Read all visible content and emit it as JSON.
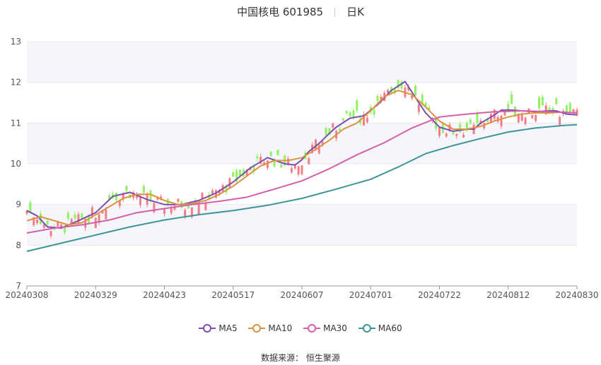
{
  "header": {
    "stock_name": "中国核电 601985",
    "period": "日K"
  },
  "source": {
    "label": "数据来源：",
    "name": "恒生聚源"
  },
  "colors": {
    "up": "#f47d85",
    "down": "#8ff25f",
    "MA5": "#7a4fb1",
    "MA10": "#e0913f",
    "MA30": "#d55fa8",
    "MA60": "#3f9496",
    "band": "#f4f6fb",
    "grid": "#e8e8e8"
  },
  "chart_data": {
    "type": "candlestick",
    "ylim": [
      7,
      13
    ],
    "yticks": [
      7,
      8,
      9,
      10,
      11,
      12,
      13
    ],
    "xticks": [
      "20240308",
      "20240329",
      "20240423",
      "20240517",
      "20240607",
      "20240701",
      "20240722",
      "20240812",
      "20240830"
    ],
    "legend_position": "bottom",
    "series": [
      {
        "name": "MA5",
        "x": [
          0,
          3,
          6,
          10,
          15,
          20,
          25,
          30,
          35,
          40,
          45,
          50,
          55,
          60,
          65,
          70,
          75,
          78,
          80,
          82,
          85,
          88,
          90,
          94,
          98,
          102,
          106,
          110,
          114,
          116,
          120,
          124,
          128,
          130,
          132,
          136,
          138,
          141,
          144,
          148,
          152,
          154,
          157,
          160
        ],
        "values": [
          8.85,
          8.72,
          8.45,
          8.42,
          8.6,
          8.8,
          9.2,
          9.3,
          9.12,
          9.0,
          9.0,
          9.1,
          9.28,
          9.55,
          9.9,
          10.15,
          10.0,
          9.97,
          10.1,
          10.3,
          10.5,
          10.75,
          10.9,
          11.12,
          11.18,
          11.45,
          11.8,
          12.02,
          11.5,
          11.25,
          10.9,
          10.8,
          10.85,
          10.85,
          11.0,
          11.2,
          11.32,
          11.32,
          11.3,
          11.28,
          11.3,
          11.3,
          11.22,
          11.2
        ]
      },
      {
        "name": "MA10",
        "x": [
          0,
          4,
          8,
          12,
          16,
          20,
          24,
          28,
          32,
          36,
          40,
          44,
          48,
          52,
          56,
          60,
          64,
          68,
          72,
          76,
          80,
          84,
          88,
          92,
          96,
          100,
          104,
          108,
          112,
          116,
          120,
          124,
          128,
          132,
          136,
          140,
          144,
          148,
          152,
          156,
          160
        ],
        "values": [
          8.6,
          8.7,
          8.6,
          8.5,
          8.55,
          8.75,
          8.95,
          9.15,
          9.25,
          9.25,
          9.1,
          9.0,
          9.02,
          9.1,
          9.25,
          9.45,
          9.7,
          9.95,
          10.08,
          10.08,
          10.15,
          10.35,
          10.58,
          10.85,
          11.0,
          11.3,
          11.65,
          11.8,
          11.7,
          11.4,
          11.05,
          10.85,
          10.85,
          10.92,
          11.05,
          11.15,
          11.22,
          11.25,
          11.25,
          11.27,
          11.25
        ]
      },
      {
        "name": "MA30",
        "x": [
          0,
          8,
          16,
          24,
          32,
          40,
          48,
          56,
          64,
          72,
          80,
          88,
          96,
          104,
          112,
          120,
          128,
          136,
          144,
          152,
          160
        ],
        "values": [
          8.3,
          8.42,
          8.5,
          8.62,
          8.8,
          8.9,
          9.0,
          9.08,
          9.18,
          9.38,
          9.58,
          9.88,
          10.22,
          10.52,
          10.88,
          11.15,
          11.22,
          11.28,
          11.3,
          11.28,
          11.25
        ]
      },
      {
        "name": "MA60",
        "x": [
          0,
          10,
          20,
          30,
          40,
          50,
          60,
          70,
          80,
          90,
          100,
          108,
          116,
          124,
          132,
          140,
          148,
          156,
          160
        ],
        "values": [
          7.85,
          8.05,
          8.25,
          8.45,
          8.62,
          8.75,
          8.85,
          8.98,
          9.15,
          9.38,
          9.62,
          9.92,
          10.25,
          10.45,
          10.62,
          10.78,
          10.88,
          10.94,
          10.96
        ]
      }
    ]
  }
}
